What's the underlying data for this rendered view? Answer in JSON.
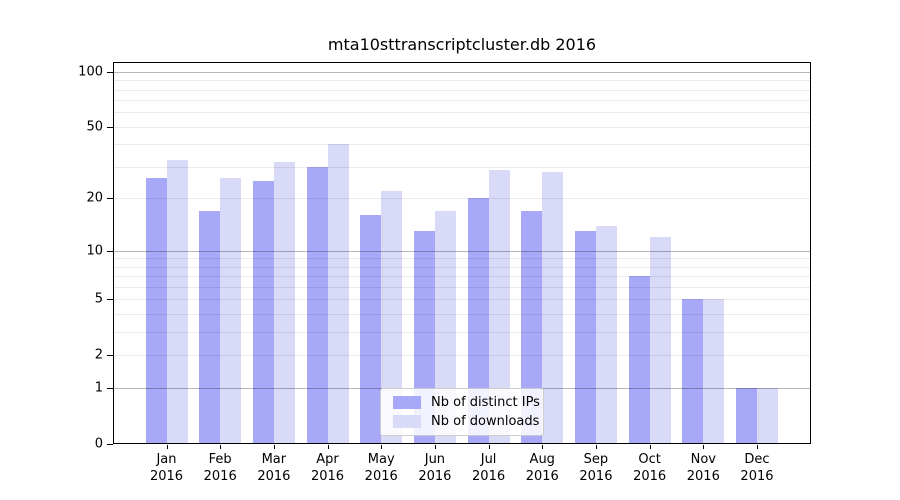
{
  "title": "mta10sttranscriptcluster.db 2016",
  "chart_data": {
    "type": "bar",
    "title": "mta10sttranscriptcluster.db 2016",
    "categories": [
      "Jan",
      "Feb",
      "Mar",
      "Apr",
      "May",
      "Jun",
      "Jul",
      "Aug",
      "Sep",
      "Oct",
      "Nov",
      "Dec"
    ],
    "year": "2016",
    "series": [
      {
        "name": "Nb of distinct IPs",
        "color": "#a8a8f8",
        "values": [
          26,
          17,
          25,
          30,
          16,
          13,
          20,
          17,
          13,
          7,
          5,
          1
        ]
      },
      {
        "name": "Nb of downloads",
        "color": "#d9d9f8",
        "values": [
          33,
          26,
          32,
          40,
          22,
          17,
          29,
          28,
          14,
          12,
          5,
          1
        ]
      }
    ],
    "xlabel": "",
    "ylabel": "",
    "y_scale": "log1p",
    "ylim": [
      0,
      113
    ],
    "y_tick_values": [
      0,
      1,
      2,
      5,
      10,
      20,
      50,
      100
    ],
    "y_major_gridlines": [
      1,
      10,
      100
    ],
    "y_minor_gridlines": [
      2,
      3,
      4,
      5,
      6,
      7,
      8,
      9,
      20,
      30,
      40,
      50,
      60,
      70,
      80,
      90
    ],
    "grid": true,
    "legend_position": "lower center"
  },
  "legend": {
    "items": [
      {
        "label": "Nb of distinct IPs",
        "swatch_color": "#a8a8f8"
      },
      {
        "label": "Nb of downloads",
        "swatch_color": "#d9d9f8"
      }
    ]
  },
  "colors": {
    "bar_distinct_ips": "#a8a8f8",
    "bar_downloads": "#d9d9f8",
    "spine": "#000000",
    "background": "#ffffff"
  }
}
